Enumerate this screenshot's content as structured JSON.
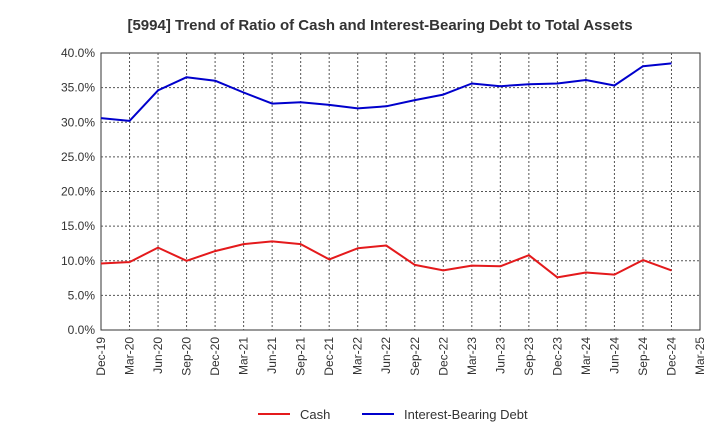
{
  "chart_data": {
    "type": "line",
    "title": "[5994]  Trend of Ratio of Cash and Interest-Bearing Debt to Total Assets",
    "xlabel": "",
    "ylabel": "",
    "categories": [
      "Dec-19",
      "Mar-20",
      "Jun-20",
      "Sep-20",
      "Dec-20",
      "Mar-21",
      "Jun-21",
      "Sep-21",
      "Dec-21",
      "Mar-22",
      "Jun-22",
      "Sep-22",
      "Dec-22",
      "Mar-23",
      "Jun-23",
      "Sep-23",
      "Dec-23",
      "Mar-24",
      "Jun-24",
      "Sep-24",
      "Dec-24",
      "Mar-25"
    ],
    "y_ticks": [
      "0.0%",
      "5.0%",
      "10.0%",
      "15.0%",
      "20.0%",
      "25.0%",
      "30.0%",
      "35.0%",
      "40.0%"
    ],
    "ylim": [
      0,
      40
    ],
    "grid": true,
    "legend_position": "bottom-center",
    "series": [
      {
        "name": "Cash",
        "color": "#e41a1c",
        "values": [
          9.6,
          9.8,
          11.9,
          10.0,
          11.4,
          12.4,
          12.8,
          12.4,
          10.2,
          11.8,
          12.2,
          9.4,
          8.6,
          9.3,
          9.2,
          10.8,
          7.6,
          8.3,
          8.0,
          10.1,
          8.6,
          null
        ]
      },
      {
        "name": "Interest-Bearing Debt",
        "color": "#0000cc",
        "values": [
          30.6,
          30.2,
          34.6,
          36.5,
          36.0,
          34.3,
          32.7,
          32.9,
          32.5,
          32.0,
          32.3,
          33.2,
          34.0,
          35.6,
          35.2,
          35.5,
          35.6,
          36.1,
          35.3,
          38.1,
          38.5,
          null
        ]
      }
    ]
  }
}
